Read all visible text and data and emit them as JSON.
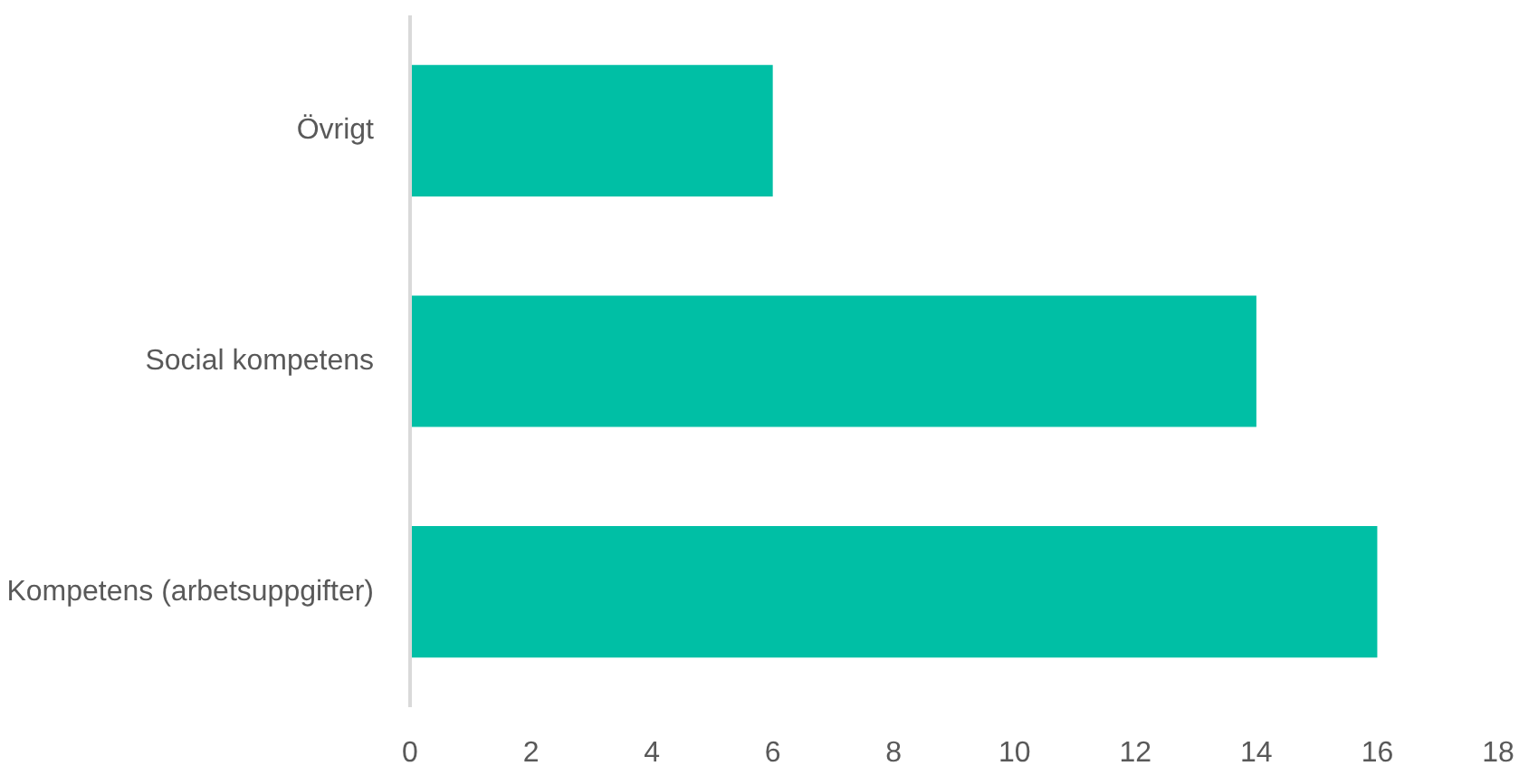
{
  "chart_data": {
    "type": "bar",
    "orientation": "horizontal",
    "categories": [
      "Övrigt",
      "Social kompetens",
      "Kompetens (arbetsuppgifter)"
    ],
    "values": [
      6,
      14,
      16
    ],
    "color": "#00bfa5",
    "xlim": [
      0,
      18
    ],
    "xticks": [
      0,
      2,
      4,
      6,
      8,
      10,
      12,
      14,
      16,
      18
    ],
    "grid": false
  }
}
